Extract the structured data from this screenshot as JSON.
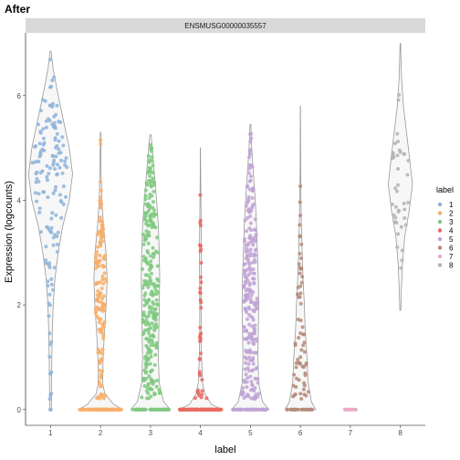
{
  "chart_data": {
    "type": "violin",
    "title": "After",
    "facet_label": "ENSMUSG00000035557",
    "xlabel": "label",
    "ylabel": "Expression (logcounts)",
    "ylim": [
      -0.3,
      7.2
    ],
    "y_ticks": [
      0,
      2,
      4,
      6
    ],
    "categories": [
      "1",
      "2",
      "3",
      "4",
      "5",
      "6",
      "7",
      "8"
    ],
    "legend": {
      "title": "label",
      "entries": [
        "1",
        "2",
        "3",
        "4",
        "5",
        "6",
        "7",
        "8"
      ],
      "position": "right"
    },
    "colors": [
      "#8eb4d9",
      "#f7ae6a",
      "#7fc97f",
      "#e8695f",
      "#bfa3d6",
      "#b58a78",
      "#f2a7c8",
      "#b3b3b3"
    ],
    "series": [
      {
        "category": "1",
        "n_points": 150,
        "n_zero": 3,
        "min": 0,
        "max": 6.85,
        "density": [
          [
            0,
            0.04
          ],
          [
            0.5,
            0.05
          ],
          [
            1,
            0.06
          ],
          [
            1.5,
            0.08
          ],
          [
            2,
            0.12
          ],
          [
            2.5,
            0.2
          ],
          [
            3,
            0.35
          ],
          [
            3.5,
            0.55
          ],
          [
            4,
            0.85
          ],
          [
            4.5,
            1.0
          ],
          [
            5,
            0.85
          ],
          [
            5.5,
            0.6
          ],
          [
            6,
            0.35
          ],
          [
            6.5,
            0.12
          ],
          [
            6.85,
            0.02
          ]
        ]
      },
      {
        "category": "2",
        "n_points": 260,
        "n_zero": 115,
        "min": 0,
        "max": 5.3,
        "density": [
          [
            0,
            1.0
          ],
          [
            0.1,
            0.6
          ],
          [
            0.3,
            0.2
          ],
          [
            0.5,
            0.1
          ],
          [
            1,
            0.12
          ],
          [
            1.5,
            0.18
          ],
          [
            2,
            0.26
          ],
          [
            2.5,
            0.3
          ],
          [
            3,
            0.25
          ],
          [
            3.5,
            0.14
          ],
          [
            4,
            0.06
          ],
          [
            4.5,
            0.03
          ],
          [
            5,
            0.015
          ],
          [
            5.3,
            0.01
          ]
        ]
      },
      {
        "category": "3",
        "n_points": 340,
        "n_zero": 60,
        "min": 0,
        "max": 5.25,
        "density": [
          [
            0,
            0.9
          ],
          [
            0.15,
            0.6
          ],
          [
            0.5,
            0.4
          ],
          [
            1,
            0.36
          ],
          [
            1.5,
            0.38
          ],
          [
            2,
            0.4
          ],
          [
            2.5,
            0.42
          ],
          [
            3,
            0.4
          ],
          [
            3.5,
            0.36
          ],
          [
            4,
            0.28
          ],
          [
            4.5,
            0.18
          ],
          [
            5,
            0.08
          ],
          [
            5.25,
            0.03
          ]
        ]
      },
      {
        "category": "4",
        "n_points": 160,
        "n_zero": 120,
        "min": 0,
        "max": 5.0,
        "density": [
          [
            0,
            1.0
          ],
          [
            0.1,
            0.5
          ],
          [
            0.3,
            0.2
          ],
          [
            0.5,
            0.1
          ],
          [
            1,
            0.05
          ],
          [
            1.5,
            0.035
          ],
          [
            2,
            0.03
          ],
          [
            2.5,
            0.04
          ],
          [
            3,
            0.045
          ],
          [
            3.5,
            0.035
          ],
          [
            4,
            0.02
          ],
          [
            4.5,
            0.01
          ],
          [
            5,
            0.005
          ]
        ]
      },
      {
        "category": "5",
        "n_points": 310,
        "n_zero": 60,
        "min": 0,
        "max": 5.45,
        "density": [
          [
            0,
            0.85
          ],
          [
            0.15,
            0.55
          ],
          [
            0.5,
            0.38
          ],
          [
            1,
            0.34
          ],
          [
            1.5,
            0.36
          ],
          [
            2,
            0.38
          ],
          [
            2.5,
            0.36
          ],
          [
            3,
            0.32
          ],
          [
            3.5,
            0.28
          ],
          [
            4,
            0.22
          ],
          [
            4.5,
            0.14
          ],
          [
            5,
            0.06
          ],
          [
            5.45,
            0.02
          ]
        ]
      },
      {
        "category": "6",
        "n_points": 90,
        "n_zero": 25,
        "min": 0,
        "max": 5.8,
        "density": [
          [
            0,
            0.7
          ],
          [
            0.15,
            0.5
          ],
          [
            0.5,
            0.35
          ],
          [
            1,
            0.3
          ],
          [
            1.5,
            0.22
          ],
          [
            2,
            0.18
          ],
          [
            2.5,
            0.12
          ],
          [
            3,
            0.08
          ],
          [
            3.5,
            0.05
          ],
          [
            4,
            0.03
          ],
          [
            4.5,
            0.015
          ],
          [
            5,
            0.01
          ],
          [
            5.8,
            0.005
          ]
        ]
      },
      {
        "category": "7",
        "n_points": 12,
        "n_zero": 12,
        "min": 0,
        "max": 0,
        "density": [
          [
            0,
            0.3
          ]
        ]
      },
      {
        "category": "8",
        "n_points": 40,
        "n_zero": 0,
        "min": 1.9,
        "max": 7.0,
        "density": [
          [
            1.9,
            0.02
          ],
          [
            2.3,
            0.05
          ],
          [
            2.8,
            0.1
          ],
          [
            3.3,
            0.2
          ],
          [
            3.8,
            0.4
          ],
          [
            4.3,
            0.55
          ],
          [
            4.8,
            0.42
          ],
          [
            5.3,
            0.28
          ],
          [
            5.8,
            0.14
          ],
          [
            6.3,
            0.06
          ],
          [
            6.7,
            0.03
          ],
          [
            7.0,
            0.01
          ]
        ]
      }
    ]
  }
}
